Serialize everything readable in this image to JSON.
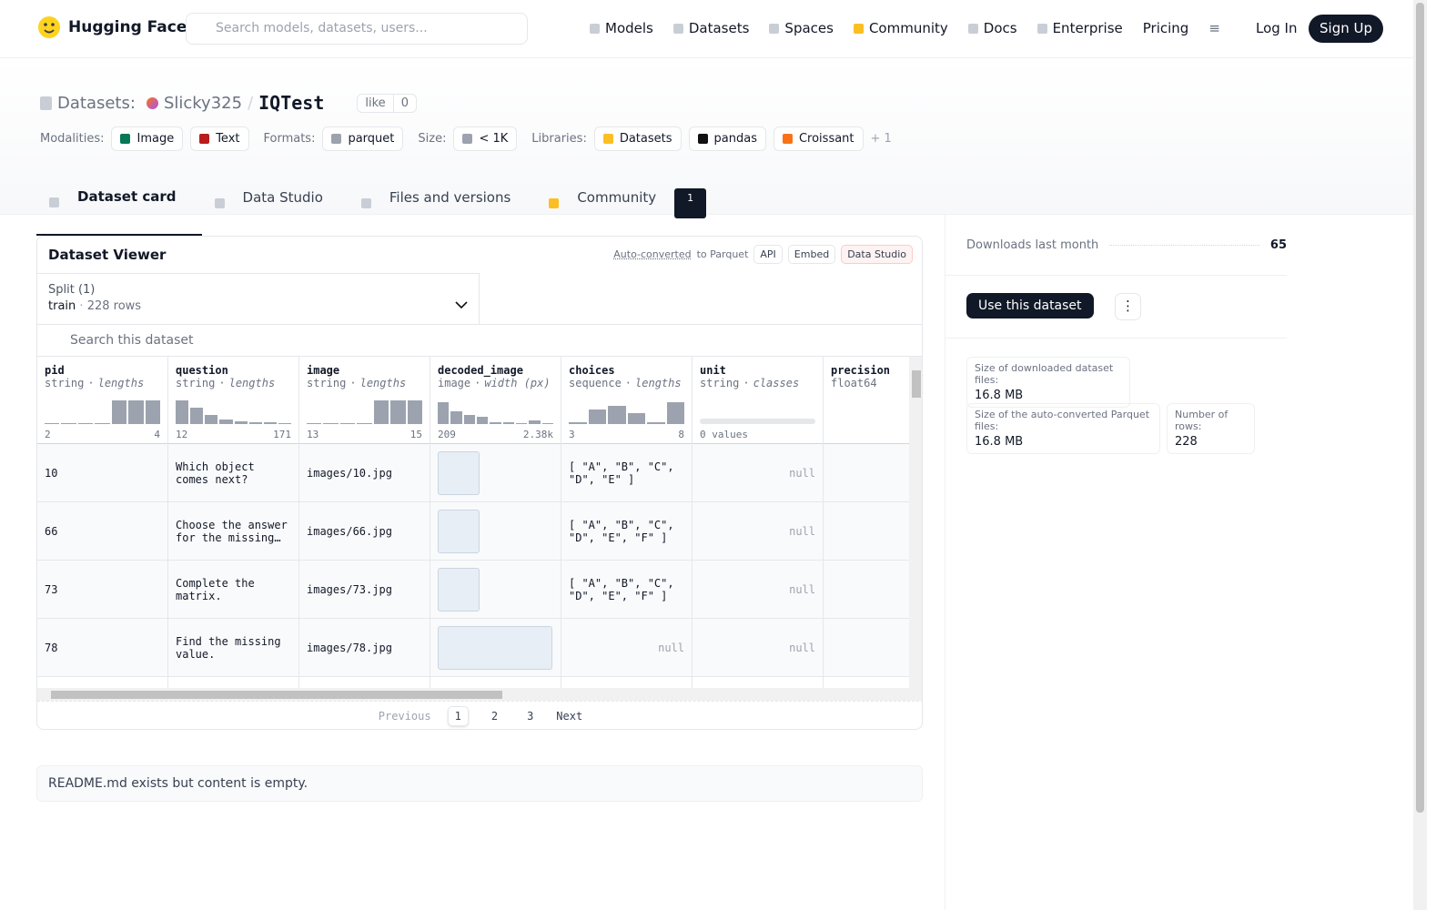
{
  "header": {
    "brand": "Hugging Face",
    "search_placeholder": "Search models, datasets, users...",
    "nav": [
      "Models",
      "Datasets",
      "Spaces",
      "Community",
      "Docs",
      "Enterprise",
      "Pricing"
    ],
    "login": "Log In",
    "signup": "Sign Up"
  },
  "repo": {
    "kind": "Datasets:",
    "owner": "Slicky325",
    "separator": "/",
    "name": "IQTest",
    "like": "like",
    "likes": 0
  },
  "tags": [
    {
      "label": "Modalities:",
      "items": [
        "Image",
        "Text"
      ]
    },
    {
      "label": "Formats:",
      "items": [
        "parquet"
      ]
    },
    {
      "label": "Size:",
      "items": [
        "< 1K"
      ]
    },
    {
      "label": "Libraries:",
      "items": [
        "Datasets",
        "pandas",
        "Croissant"
      ]
    }
  ],
  "tags_more": "+ 1",
  "tabs": [
    "Dataset card",
    "Data Studio",
    "Files and versions",
    "Community"
  ],
  "community_count": 1,
  "viewer": {
    "title": "Dataset Viewer",
    "auto_converted": "Auto-converted",
    "to_parquet": "to Parquet",
    "buttons": [
      "API",
      "Embed",
      "Data Studio"
    ],
    "split_label": "Split (1)",
    "split": "train",
    "separator": "·",
    "rows_count": "228 rows",
    "search_placeholder": "Search this dataset",
    "columns": [
      {
        "name": "pid",
        "type": "string",
        "stat": "lengths",
        "min": "2",
        "max": "4"
      },
      {
        "name": "question",
        "type": "string",
        "stat": "lengths",
        "min": "12",
        "max": "171"
      },
      {
        "name": "image",
        "type": "string",
        "stat": "lengths",
        "min": "13",
        "max": "15"
      },
      {
        "name": "decoded_image",
        "type": "image",
        "stat": "width (px)",
        "min": "209",
        "max": "2.38k"
      },
      {
        "name": "choices",
        "type": "sequence",
        "stat": "lengths",
        "min": "3",
        "max": "8"
      },
      {
        "name": "unit",
        "type": "string",
        "stat": "classes",
        "min": "0 values"
      },
      {
        "name": "precision",
        "type": "float64"
      }
    ],
    "rows": [
      [
        "10",
        "Which object comes next?",
        "images/10.jpg",
        "[ \"A\", \"B\", \"C\", \"D\", \"E\" ]",
        "null",
        "null"
      ],
      [
        "66",
        "Choose the answer for the missing…",
        "images/66.jpg",
        "[ \"A\", \"B\", \"C\", \"D\", \"E\", \"F\" ]",
        "null",
        "null"
      ],
      [
        "73",
        "Complete the matrix.",
        "images/73.jpg",
        "[ \"A\", \"B\", \"C\", \"D\", \"E\", \"F\" ]",
        "null",
        "null"
      ],
      [
        "78",
        "Find the missing value.",
        "images/78.jpg",
        "null",
        "null",
        "null"
      ]
    ],
    "pagination": {
      "previous": "Previous",
      "pages": [
        "1",
        "2",
        "3"
      ],
      "next": "Next"
    }
  },
  "readme": "README.md exists but content is empty.",
  "sidebar": {
    "downloads_label": "Downloads last month",
    "downloads": 65,
    "use_button": "Use this dataset",
    "stats": [
      {
        "label": "Size of downloaded dataset files:",
        "value": "16.8 MB"
      },
      {
        "label": "Size of the auto-converted Parquet files:",
        "value": "16.8 MB"
      },
      {
        "label": "Number of rows:",
        "value": "228"
      }
    ]
  }
}
